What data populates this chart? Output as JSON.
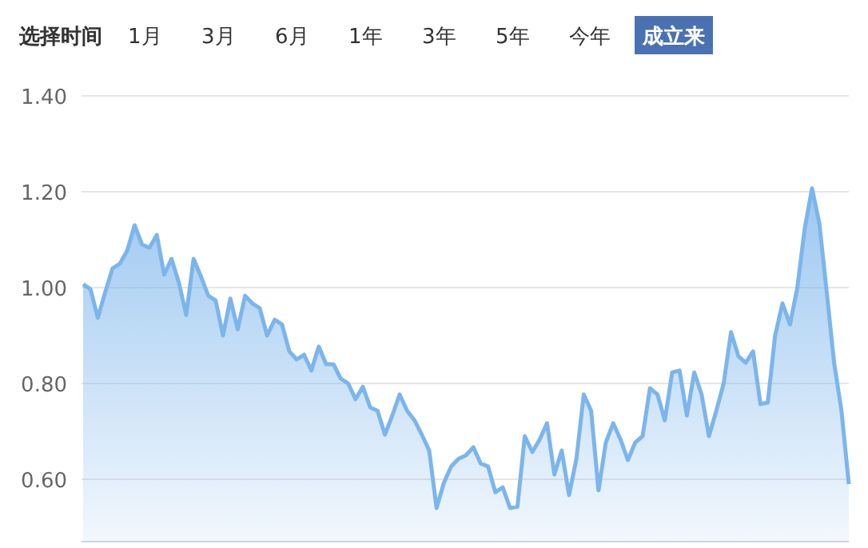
{
  "chart_data": {
    "type": "area",
    "color": "#7cb5ec",
    "ylim": [
      0.47,
      1.4
    ],
    "yticks": [
      {
        "value": 0.6,
        "label": "0.60"
      },
      {
        "value": 0.8,
        "label": "0.80"
      },
      {
        "value": 1.0,
        "label": "1.00"
      },
      {
        "value": 1.2,
        "label": "1.20"
      },
      {
        "value": 1.4,
        "label": "1.40"
      }
    ],
    "grid": "y",
    "tick_labels": "y",
    "annotations": [
      "选择时间",
      "1月",
      "3月",
      "6月",
      "1年",
      "3年",
      "5年",
      "今年",
      "成立来"
    ],
    "categories": [
      null,
      null,
      null,
      null,
      null,
      null,
      null,
      null,
      null,
      null,
      null,
      null,
      null,
      null,
      null,
      null,
      null,
      null,
      null,
      null,
      null,
      null,
      null,
      null,
      null,
      null,
      null,
      null,
      null,
      null,
      null,
      null,
      null,
      null,
      null,
      null,
      null,
      null,
      null,
      null,
      null,
      null,
      null,
      null,
      null,
      null,
      null,
      null,
      null,
      null,
      null,
      null,
      null,
      null,
      null,
      null,
      null,
      null,
      null,
      null,
      null,
      null,
      null,
      null,
      null,
      null,
      null,
      null,
      null,
      null,
      null,
      null,
      null,
      null,
      null,
      null,
      null,
      null,
      null,
      null,
      null,
      null,
      null,
      null,
      null,
      null,
      null,
      null,
      null,
      null,
      null,
      null,
      null,
      null,
      null,
      null,
      null,
      null,
      null,
      null,
      null,
      null,
      null,
      null,
      null
    ],
    "values": [
      1.007,
      0.997,
      0.937,
      0.99,
      1.04,
      1.05,
      1.077,
      1.13,
      1.09,
      1.083,
      1.11,
      1.027,
      1.06,
      1.01,
      0.943,
      1.06,
      1.023,
      0.983,
      0.973,
      0.9,
      0.977,
      0.913,
      0.983,
      0.967,
      0.957,
      0.9,
      0.933,
      0.923,
      0.867,
      0.85,
      0.86,
      0.827,
      0.877,
      0.84,
      0.84,
      0.81,
      0.8,
      0.767,
      0.793,
      0.75,
      0.743,
      0.693,
      0.733,
      0.777,
      0.743,
      0.723,
      0.693,
      0.66,
      0.54,
      0.593,
      0.627,
      0.643,
      0.65,
      0.667,
      0.633,
      0.627,
      0.573,
      0.583,
      0.54,
      0.543,
      0.69,
      0.657,
      0.683,
      0.717,
      0.61,
      0.66,
      0.567,
      0.643,
      0.777,
      0.743,
      0.577,
      0.677,
      0.717,
      0.683,
      0.64,
      0.677,
      0.69,
      0.79,
      0.777,
      0.723,
      0.823,
      0.827,
      0.733,
      0.823,
      0.777,
      0.69,
      0.743,
      0.8,
      0.907,
      0.857,
      0.843,
      0.867,
      0.757,
      0.76,
      0.9,
      0.967,
      0.923,
      1.0,
      1.123,
      1.207,
      1.133,
      0.99,
      0.843,
      0.743,
      0.59
    ]
  }
}
